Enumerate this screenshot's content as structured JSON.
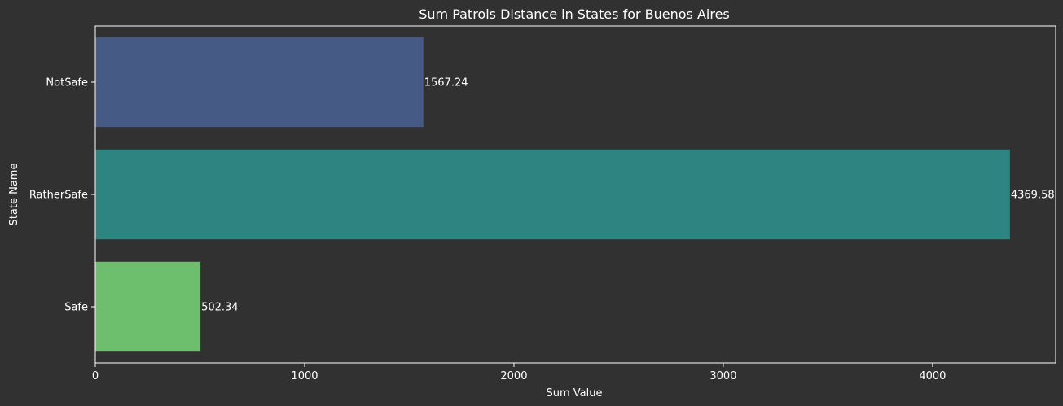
{
  "chart_data": {
    "type": "bar",
    "orientation": "horizontal",
    "title": "Sum Patrols Distance in States for Buenos Aires",
    "xlabel": "Sum Value",
    "ylabel": "State Name",
    "categories": [
      "NotSafe",
      "RatherSafe",
      "Safe"
    ],
    "values": [
      1567.24,
      4369.58,
      502.34
    ],
    "value_labels": [
      "1567.24",
      "4369.58",
      "502.34"
    ],
    "colors": [
      "#455a84",
      "#2e8480",
      "#6dbf6d"
    ],
    "xlim": [
      0,
      4588
    ],
    "xticks": [
      0,
      1000,
      2000,
      3000,
      4000
    ],
    "xtick_labels": [
      "0",
      "1000",
      "2000",
      "3000",
      "4000"
    ],
    "grid": false,
    "legend": "none"
  }
}
